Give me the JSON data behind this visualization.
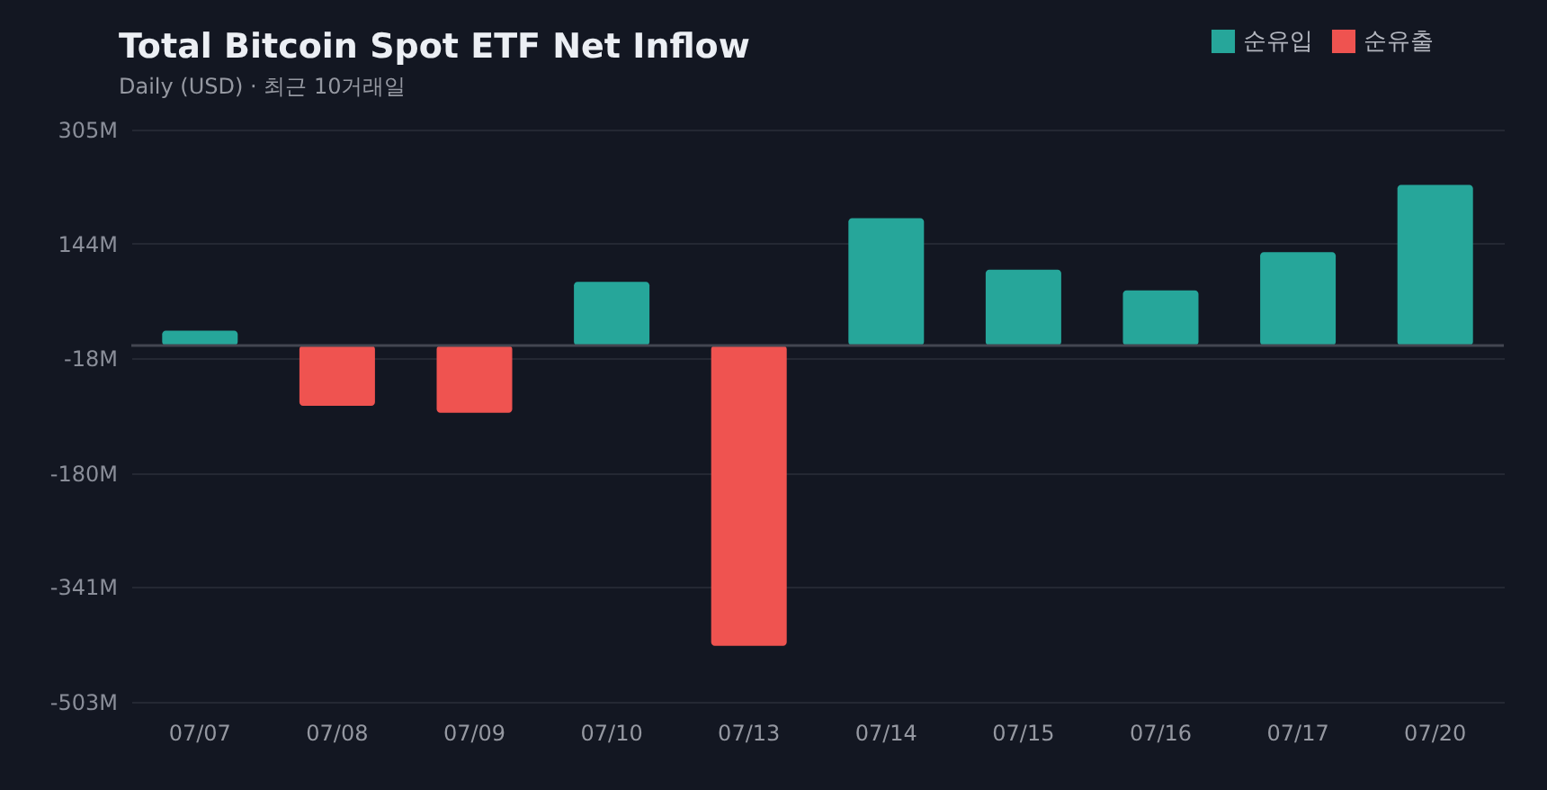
{
  "chart_data": {
    "type": "bar",
    "title": "Total Bitcoin Spot ETF Net Inflow",
    "subtitle": "Daily (USD) · 최근 10거래일",
    "categories": [
      "07/07",
      "07/08",
      "07/09",
      "07/10",
      "07/13",
      "07/14",
      "07/15",
      "07/16",
      "07/17",
      "07/20"
    ],
    "series": [
      {
        "name": "순유입",
        "color": "#26a69a",
        "values": [
          21,
          null,
          null,
          90,
          null,
          180,
          107,
          78,
          132,
          227
        ]
      },
      {
        "name": "순유출",
        "color": "#ef5350",
        "values": [
          null,
          -85,
          -95,
          null,
          -424,
          null,
          null,
          null,
          null,
          null
        ]
      }
    ],
    "ylim": [
      -503,
      305
    ],
    "yticks": [
      {
        "value": -503,
        "label": "-503M"
      },
      {
        "value": -341,
        "label": "-341M"
      },
      {
        "value": -180,
        "label": "-180M"
      },
      {
        "value": -18,
        "label": "-18M"
      },
      {
        "value": 144,
        "label": "144M"
      },
      {
        "value": 305,
        "label": "305M"
      }
    ],
    "ref_lines": [
      {
        "axis": "y",
        "value": 0,
        "color": "#434651"
      }
    ],
    "grid": "y",
    "legend": "top right"
  }
}
